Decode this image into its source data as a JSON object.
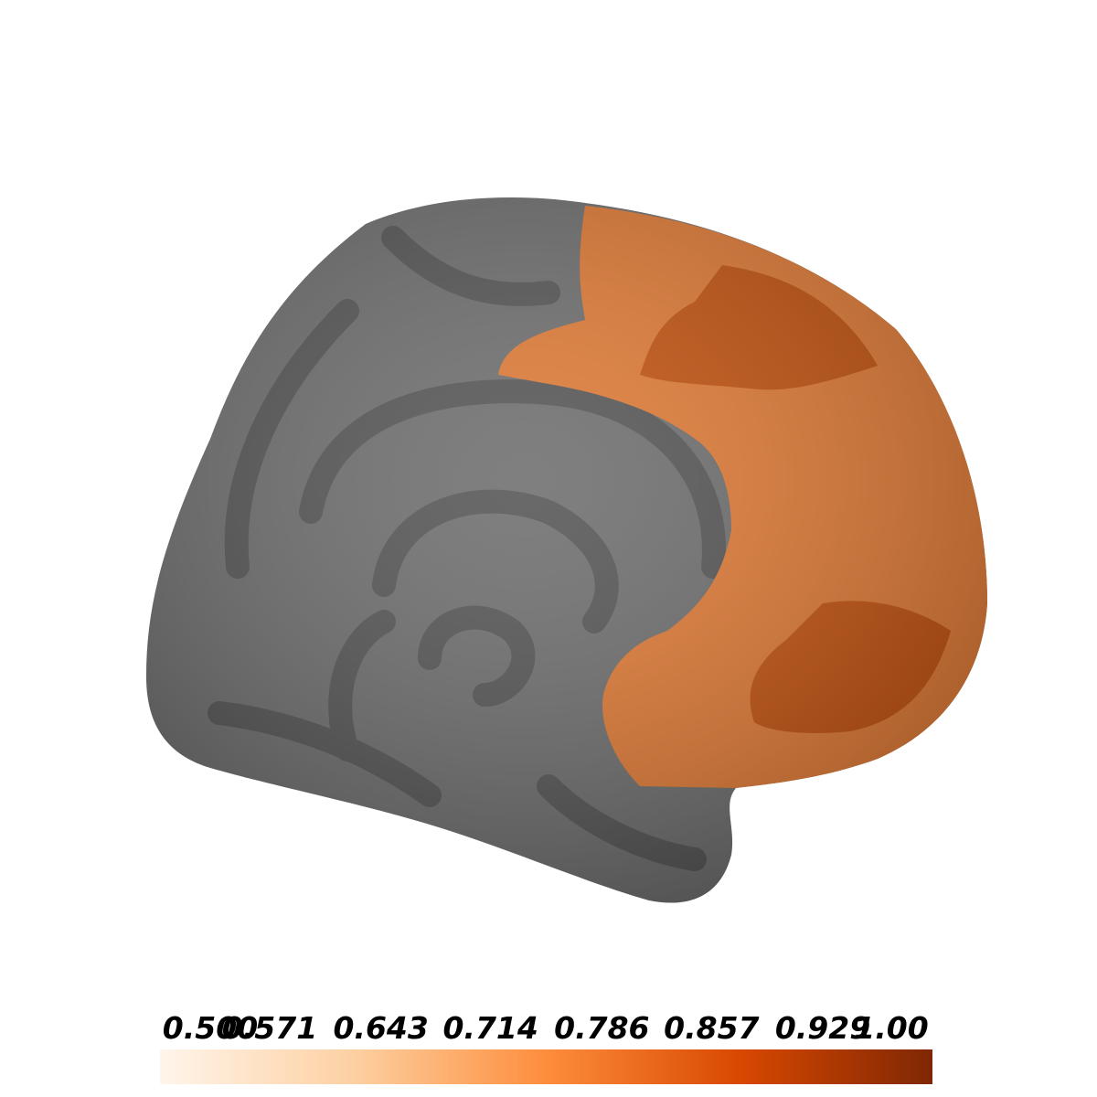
{
  "chart_data": {
    "type": "colorbar",
    "clim": [
      0.5,
      1
    ],
    "cticks": [
      {
        "value": 0.5,
        "label": "0.500"
      },
      {
        "value": 0.571,
        "label": "0.571"
      },
      {
        "value": 0.643,
        "label": "0.643"
      },
      {
        "value": 0.714,
        "label": "0.714"
      },
      {
        "value": 0.786,
        "label": "0.786"
      },
      {
        "value": 0.857,
        "label": "0.857"
      },
      {
        "value": 0.929,
        "label": "0.929"
      },
      {
        "value": 1,
        "label": "1.00"
      }
    ],
    "colormap": [
      "#fff5eb",
      "#fdd0a2",
      "#fd8d3c",
      "#d94801",
      "#7f2704"
    ]
  }
}
